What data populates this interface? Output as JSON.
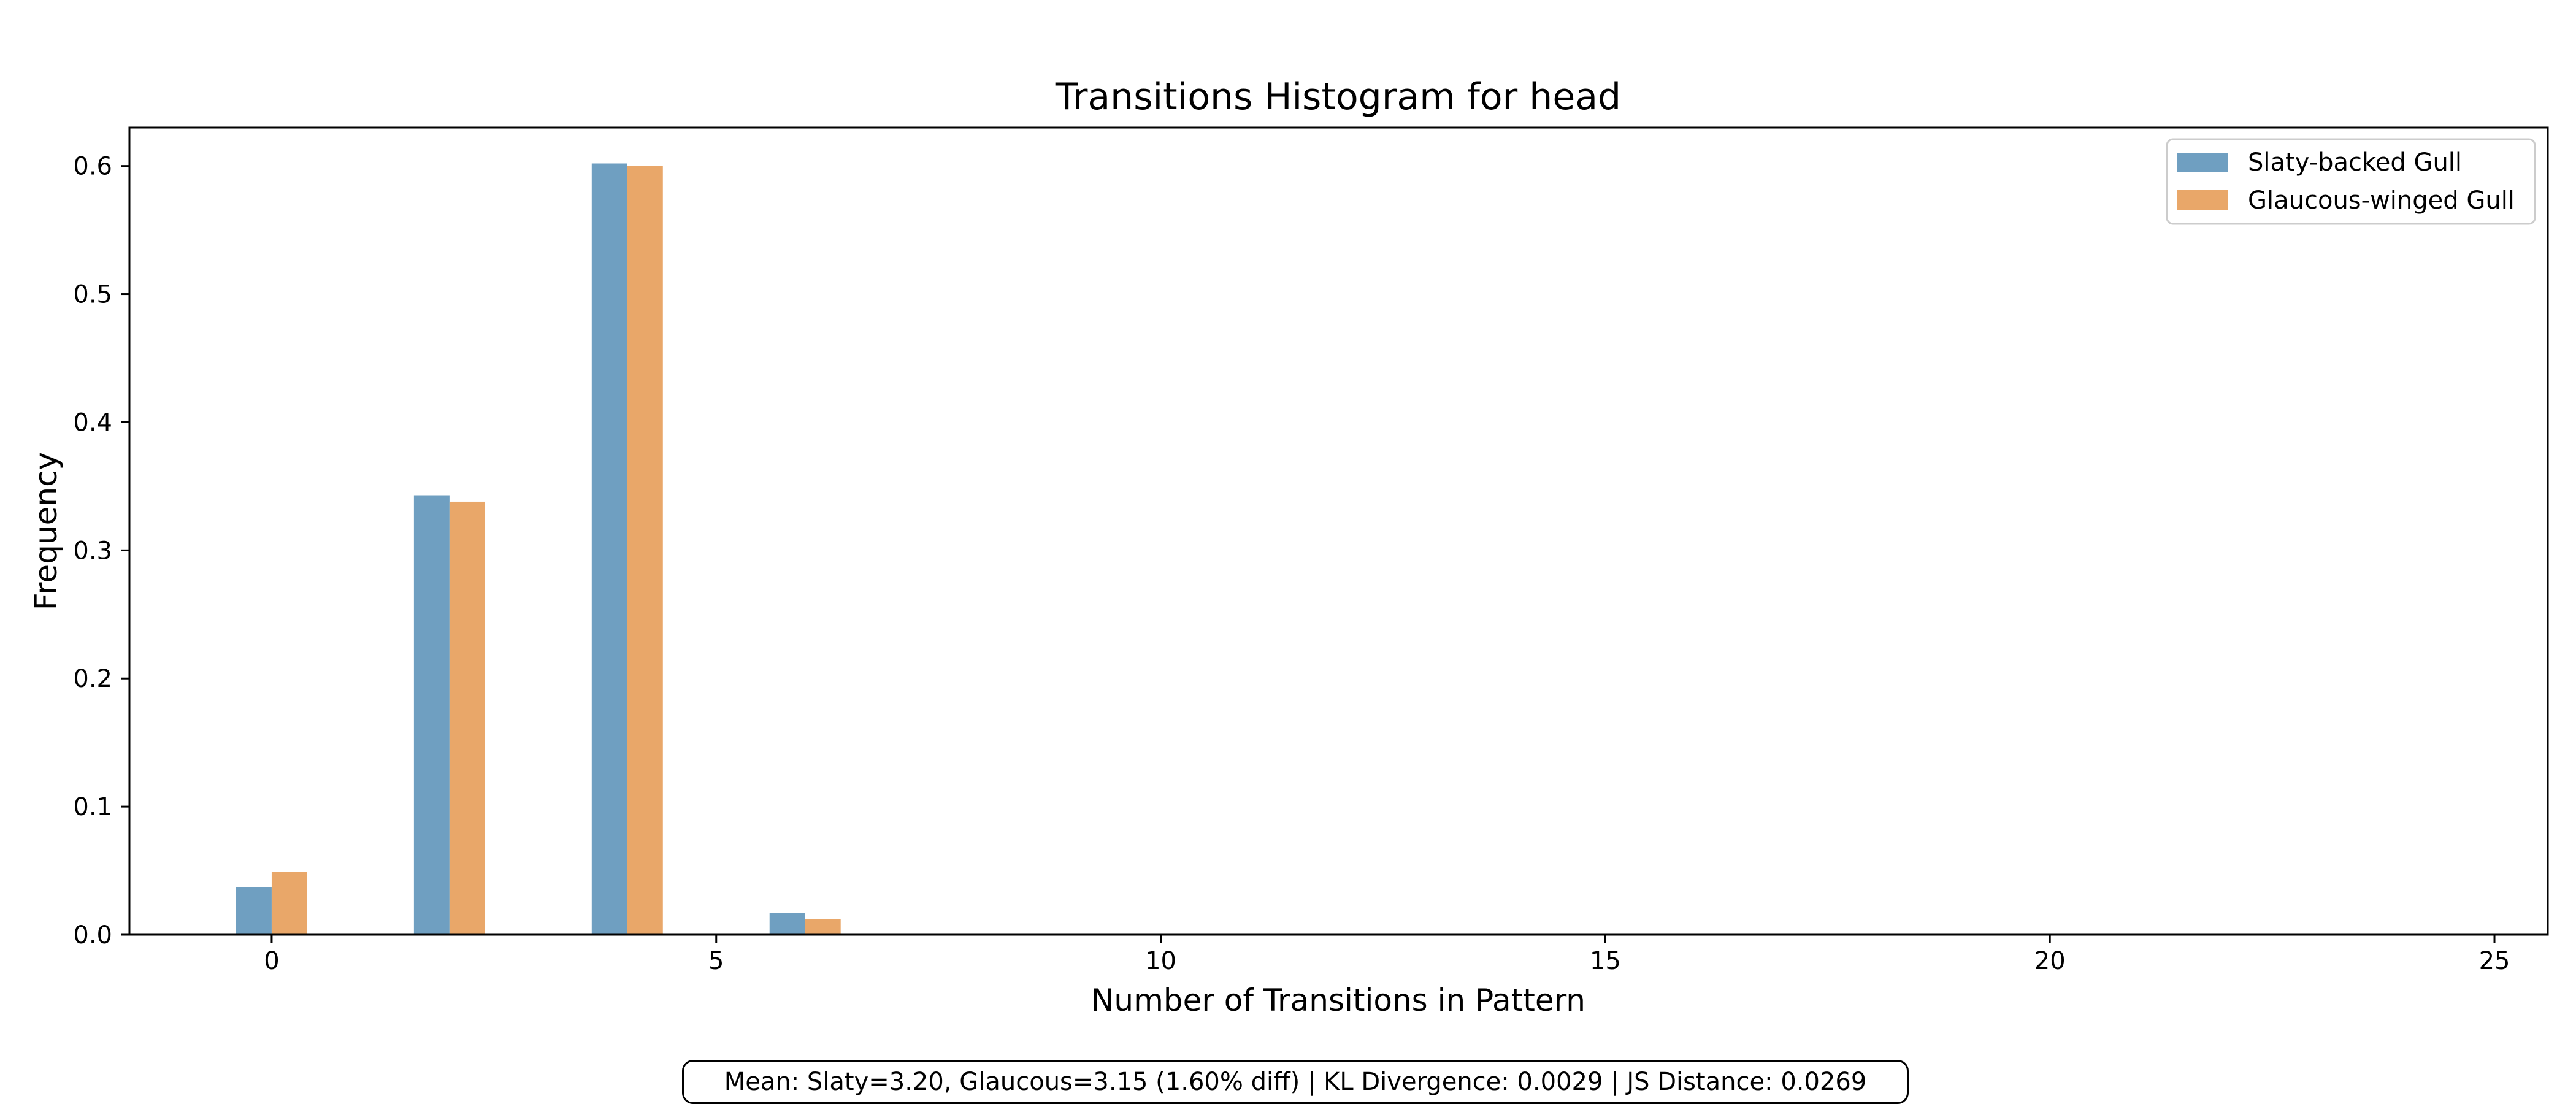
{
  "chart_data": {
    "type": "bar",
    "title": "Transitions Histogram for head",
    "xlabel": "Number of Transitions in Pattern",
    "ylabel": "Frequency",
    "xlim": [
      -1.6,
      25.6
    ],
    "ylim": [
      0,
      0.63
    ],
    "xticks": [
      0,
      5,
      10,
      15,
      20,
      25
    ],
    "yticks": [
      0.0,
      0.1,
      0.2,
      0.3,
      0.4,
      0.5,
      0.6
    ],
    "x": [
      0,
      2,
      4,
      6
    ],
    "series": [
      {
        "name": "Slaty-backed Gull",
        "color": "#6f9fc1",
        "values": [
          0.037,
          0.343,
          0.602,
          0.017
        ]
      },
      {
        "name": "Glaucous-winged Gull",
        "color": "#e9a769",
        "values": [
          0.049,
          0.338,
          0.6,
          0.012
        ]
      }
    ],
    "grid": false,
    "legend": "top-right"
  },
  "stats_text": "Mean: Slaty=3.20, Glaucous=3.15 (1.60% diff) | KL Divergence: 0.0029 | JS Distance: 0.0269"
}
